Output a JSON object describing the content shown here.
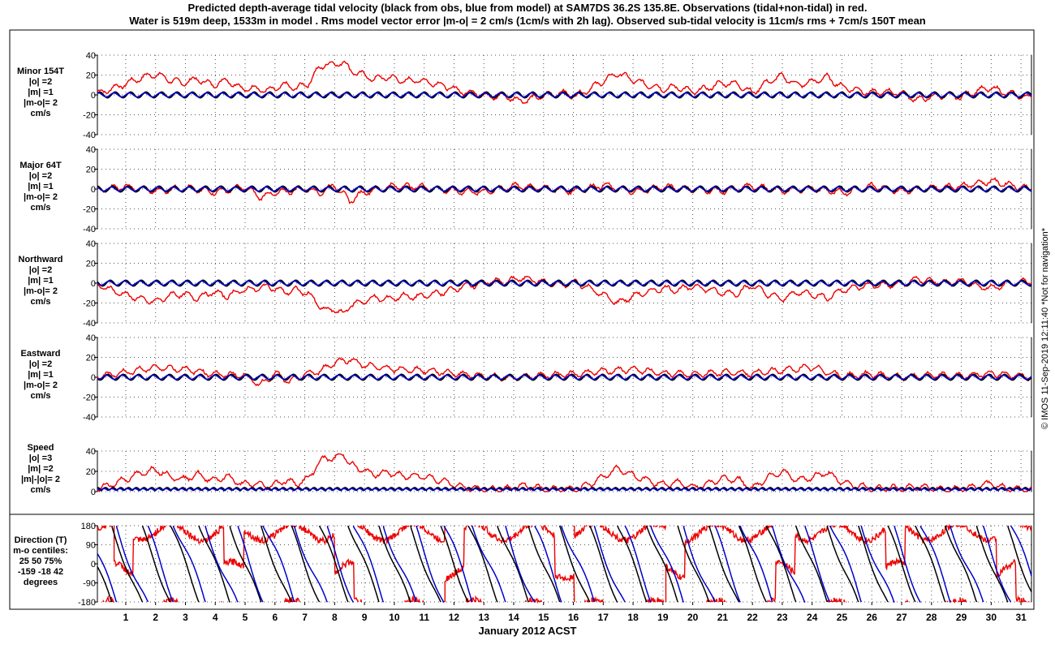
{
  "title_lines": [
    "Predicted depth-average tidal velocity (black from obs, blue from model) at SAM7DS 36.2S 135.8E. Observations (tidal+non-tidal) in red.",
    "Water is 519m deep, 1533m in model . Rms model vector error |m-o| = 2 cm/s (1cm/s with 2h lag). Observed sub-tidal velocity is 11cm/s rms + 7cm/s 150T mean"
  ],
  "credit": "© IMOS 11-Sep-2019 12:11:40  *Not for navigation*",
  "colors": {
    "obs_tidal": "#000000",
    "model": "#0000cc",
    "observed": "#ee0000",
    "grid": "#555555"
  },
  "chart_data": {
    "type": "line",
    "xlabel": "January 2012 ACST",
    "x_ticks": [
      1,
      2,
      3,
      4,
      5,
      6,
      7,
      8,
      9,
      10,
      11,
      12,
      13,
      14,
      15,
      16,
      17,
      18,
      19,
      20,
      21,
      22,
      23,
      24,
      25,
      26,
      27,
      28,
      29,
      30,
      31
    ],
    "xlim": [
      0.05,
      31.35
    ],
    "grid": true,
    "legend": "none (series described in title)",
    "panels": [
      {
        "label_lines": [
          "Minor 154T",
          "|o| =2",
          "|m| =1",
          "|m-o|= 2",
          "cm/s"
        ],
        "ylim": [
          -40,
          40
        ],
        "yticks": [
          40,
          20,
          0,
          -20,
          -40
        ],
        "observed_subtidal": {
          "x": [
            0.1,
            0.8,
            1.5,
            2.0,
            2.5,
            2.9,
            3.4,
            3.9,
            4.4,
            4.9,
            5.3,
            5.8,
            6.3,
            6.7,
            7.1,
            7.4,
            7.7,
            8.0,
            8.3,
            8.5,
            8.8,
            9.3,
            9.8,
            10.3,
            10.8,
            11.3,
            11.8,
            12.3,
            12.7,
            13.2,
            13.7,
            14.2,
            14.6,
            15.1,
            15.6,
            16.1,
            16.6,
            17.0,
            17.5,
            18.0,
            18.5,
            19.0,
            19.5,
            20.0,
            20.5,
            21.0,
            21.5,
            22.0,
            22.5,
            23.0,
            23.5,
            24.0,
            24.5,
            25.0,
            25.5,
            26.0,
            26.5,
            27.0,
            27.5,
            28.0,
            28.5,
            29.0,
            29.5,
            30.0,
            30.5,
            31.0,
            31.3
          ],
          "y": [
            2,
            9,
            17,
            21,
            15,
            12,
            16,
            10,
            15,
            6,
            7,
            4,
            10,
            7,
            11,
            24,
            32,
            30,
            34,
            25,
            22,
            16,
            18,
            14,
            15,
            12,
            8,
            3,
            2,
            -2,
            -1,
            -6,
            -4,
            0,
            2,
            -1,
            7,
            14,
            22,
            15,
            10,
            6,
            8,
            3,
            7,
            12,
            11,
            2,
            13,
            19,
            10,
            13,
            18,
            8,
            5,
            2,
            3,
            2,
            -5,
            -2,
            0,
            -2,
            4,
            7,
            2,
            -1,
            -3
          ]
        },
        "observed_tidal_amplitude": 3,
        "model_tidal_amplitude": 2
      },
      {
        "label_lines": [
          "Major 64T",
          "|o| =2",
          "|m| =1",
          "|m-o|= 2",
          "cm/s"
        ],
        "ylim": [
          -40,
          40
        ],
        "yticks": [
          40,
          20,
          0,
          -20,
          -40
        ],
        "observed_subtidal": {
          "x": [
            0.1,
            1.0,
            2.0,
            3.0,
            4.0,
            5.0,
            5.5,
            6.0,
            6.5,
            7.0,
            7.5,
            8.0,
            8.5,
            9.0,
            10.0,
            11.0,
            12.0,
            13.0,
            14.0,
            15.0,
            16.0,
            17.0,
            18.0,
            19.0,
            20.0,
            21.0,
            22.0,
            23.0,
            24.0,
            25.0,
            26.0,
            27.0,
            28.0,
            29.0,
            30.0,
            31.0,
            31.3
          ],
          "y": [
            0,
            2,
            -2,
            1,
            -3,
            2,
            -8,
            -4,
            -2,
            1,
            -4,
            4,
            -12,
            -3,
            3,
            2,
            -2,
            -3,
            3,
            1,
            -2,
            4,
            -3,
            2,
            0,
            -2,
            3,
            -2,
            1,
            -4,
            3,
            -2,
            1,
            3,
            8,
            2,
            0
          ]
        },
        "observed_tidal_amplitude": 3,
        "model_tidal_amplitude": 2
      },
      {
        "label_lines": [
          "Northward",
          "|o| =2",
          "|m| =1",
          "|m-o|= 2",
          "cm/s"
        ],
        "ylim": [
          -40,
          40
        ],
        "yticks": [
          40,
          20,
          0,
          -20,
          -40
        ],
        "observed_subtidal": {
          "x": [
            0.1,
            0.8,
            1.5,
            2.0,
            2.5,
            2.9,
            3.4,
            3.9,
            4.4,
            4.9,
            5.3,
            5.8,
            6.3,
            6.7,
            7.1,
            7.4,
            7.7,
            8.0,
            8.3,
            8.5,
            8.8,
            9.3,
            9.8,
            10.3,
            10.8,
            11.3,
            11.8,
            12.3,
            12.7,
            13.2,
            13.7,
            14.2,
            14.6,
            15.1,
            15.6,
            16.1,
            16.6,
            17.0,
            17.5,
            18.0,
            18.5,
            19.0,
            19.5,
            20.0,
            20.5,
            21.0,
            21.5,
            22.0,
            22.5,
            23.0,
            23.5,
            24.0,
            24.5,
            25.0,
            25.5,
            26.0,
            26.5,
            27.0,
            27.5,
            28.0,
            28.5,
            29.0,
            29.5,
            30.0,
            30.5,
            31.0,
            31.3
          ],
          "y": [
            -2,
            -10,
            -16,
            -19,
            -12,
            -11,
            -15,
            -9,
            -13,
            -7,
            -6,
            -3,
            -9,
            -7,
            -10,
            -20,
            -28,
            -26,
            -32,
            -22,
            -20,
            -15,
            -16,
            -13,
            -14,
            -11,
            -8,
            -3,
            -2,
            2,
            1,
            5,
            4,
            0,
            -2,
            1,
            -6,
            -12,
            -20,
            -13,
            -9,
            -5,
            -7,
            -3,
            -6,
            -10,
            -10,
            -2,
            -11,
            -16,
            -9,
            -11,
            -15,
            -7,
            -4,
            -2,
            -2,
            -1,
            4,
            2,
            0,
            2,
            -3,
            -5,
            -1,
            1,
            2
          ]
        },
        "observed_tidal_amplitude": 3,
        "model_tidal_amplitude": 2
      },
      {
        "label_lines": [
          "Eastward",
          "|o| =2",
          "|m| =1",
          "|m-o|= 2",
          "cm/s"
        ],
        "ylim": [
          -40,
          40
        ],
        "yticks": [
          40,
          20,
          0,
          -20,
          -40
        ],
        "observed_subtidal": {
          "x": [
            0.1,
            1.0,
            2.0,
            3.0,
            4.0,
            5.0,
            5.5,
            6.0,
            6.5,
            7.0,
            7.5,
            8.0,
            8.5,
            9.0,
            10.0,
            11.0,
            12.0,
            13.0,
            14.0,
            15.0,
            16.0,
            17.0,
            18.0,
            19.0,
            20.0,
            21.0,
            22.0,
            23.0,
            24.0,
            25.0,
            26.0,
            27.0,
            28.0,
            29.0,
            30.0,
            31.0,
            31.3
          ],
          "y": [
            1,
            5,
            10,
            8,
            3,
            2,
            -8,
            4,
            -5,
            3,
            6,
            15,
            18,
            12,
            8,
            7,
            4,
            1,
            -1,
            2,
            3,
            6,
            8,
            4,
            3,
            5,
            4,
            7,
            10,
            1,
            3,
            0,
            2,
            1,
            4,
            1,
            0
          ]
        },
        "observed_tidal_amplitude": 3,
        "model_tidal_amplitude": 2
      },
      {
        "label_lines": [
          "Speed",
          "|o| =3",
          "|m| =2",
          "|m|-|o|= 2",
          "cm/s"
        ],
        "ylim": [
          0,
          40
        ],
        "yticks": [
          40,
          20,
          0
        ],
        "observed_subtidal": {
          "x": [
            0.1,
            0.8,
            1.5,
            2.0,
            2.5,
            2.9,
            3.4,
            3.9,
            4.4,
            4.9,
            5.3,
            5.8,
            6.3,
            6.7,
            7.1,
            7.4,
            7.7,
            8.0,
            8.3,
            8.5,
            8.8,
            9.3,
            9.8,
            10.3,
            10.8,
            11.3,
            11.8,
            12.3,
            12.7,
            13.2,
            13.7,
            14.2,
            14.6,
            15.1,
            15.6,
            16.1,
            16.6,
            17.0,
            17.5,
            18.0,
            18.5,
            19.0,
            19.5,
            20.0,
            20.5,
            21.0,
            21.5,
            22.0,
            22.5,
            23.0,
            23.5,
            24.0,
            24.5,
            25.0,
            25.5,
            26.0,
            26.5,
            27.0,
            27.5,
            28.0,
            28.5,
            29.0,
            29.5,
            30.0,
            30.5,
            31.0,
            31.3
          ],
          "y": [
            3,
            10,
            18,
            22,
            15,
            12,
            17,
            11,
            15,
            7,
            8,
            5,
            11,
            8,
            12,
            26,
            34,
            32,
            38,
            27,
            23,
            17,
            19,
            15,
            16,
            13,
            9,
            4,
            3,
            2,
            2,
            6,
            5,
            2,
            3,
            2,
            8,
            15,
            23,
            16,
            11,
            7,
            9,
            4,
            8,
            13,
            12,
            3,
            14,
            20,
            11,
            14,
            19,
            9,
            6,
            3,
            4,
            3,
            5,
            3,
            2,
            3,
            5,
            8,
            3,
            2,
            3
          ]
        },
        "observed_tidal_amplitude": 3,
        "model_tidal_amplitude": 2
      }
    ],
    "direction_panel": {
      "label_lines": [
        "Direction (T)",
        "m-o centiles:",
        "25  50  75%",
        "-159  -18   42",
        "degrees"
      ],
      "ylim": [
        -180,
        180
      ],
      "yticks": [
        180,
        90,
        0,
        -90,
        -180
      ],
      "observed_mean_direction": 150,
      "observed_tidal_rotation_period_days": 1.0,
      "model_tidal_rotation_period_days": 1.0
    }
  }
}
